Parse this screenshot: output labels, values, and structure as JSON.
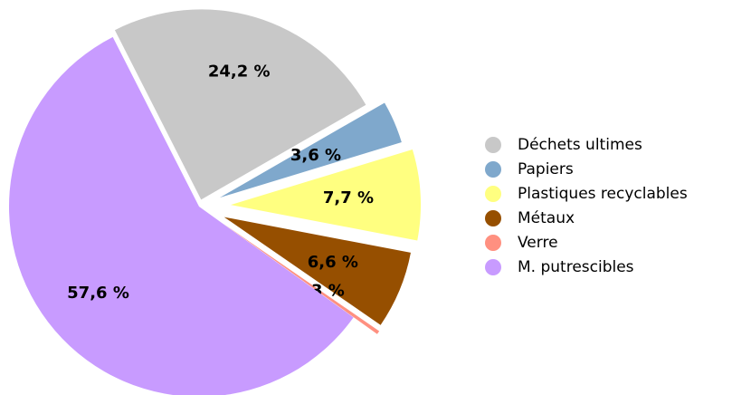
{
  "chart_data": {
    "type": "pie",
    "categories": [
      "Déchets ultimes",
      "Papiers",
      "Plastiques recyclables",
      "Métaux",
      "Verre",
      "M. putrescibles"
    ],
    "values": [
      24.2,
      3.6,
      7.7,
      6.6,
      0.3,
      57.6
    ],
    "value_labels": [
      "24,2 %",
      "3,6 %",
      "7,7 %",
      "6,6 %",
      "0,3 %",
      "57,6 %"
    ],
    "colors": [
      "#c8c8c8",
      "#7fa8cc",
      "#ffff80",
      "#964f00",
      "#ff9080",
      "#c89bff"
    ],
    "legend": "right"
  }
}
